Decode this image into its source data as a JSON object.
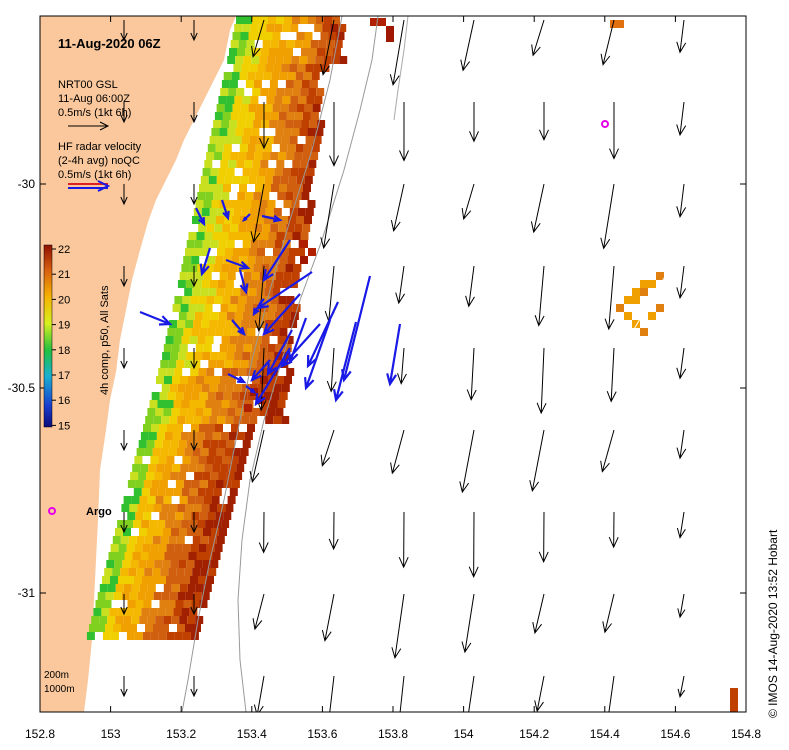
{
  "title": "11-Aug-2020 06Z",
  "legend": {
    "model_name": "NRT00 GSL",
    "model_time": "11-Aug 06:00Z",
    "model_scale": "0.5m/s (1kt 6h)",
    "radar_line1": "HF radar velocity",
    "radar_line2": "(2-4h avg) noQC",
    "radar_scale": "0.5m/s (1kt 6h)"
  },
  "colorbar": {
    "label": "4h comp, p50, All Sats",
    "ticks": [
      "22",
      "21",
      "20",
      "19",
      "18",
      "17",
      "16",
      "15"
    ],
    "min": 15,
    "max": 22
  },
  "axes": {
    "x_ticks": [
      "152.8",
      "153",
      "153.2",
      "153.4",
      "153.6",
      "153.8",
      "154",
      "154.2",
      "154.4",
      "154.6",
      "154.8"
    ],
    "y_ticks": [
      "-30",
      "-30.5",
      "-31"
    ]
  },
  "depth_labels": [
    "200m",
    "1000m"
  ],
  "markers": {
    "argo_label": "Argo"
  },
  "credit": "©  IMOS 14-Aug-2020 13:52 Hobart",
  "colors": {
    "land": "#fac89c",
    "model_arrow": "#000000",
    "radar_arrow": "#1a1ae6",
    "marker": "#e600e6",
    "frame": "#000000"
  }
}
